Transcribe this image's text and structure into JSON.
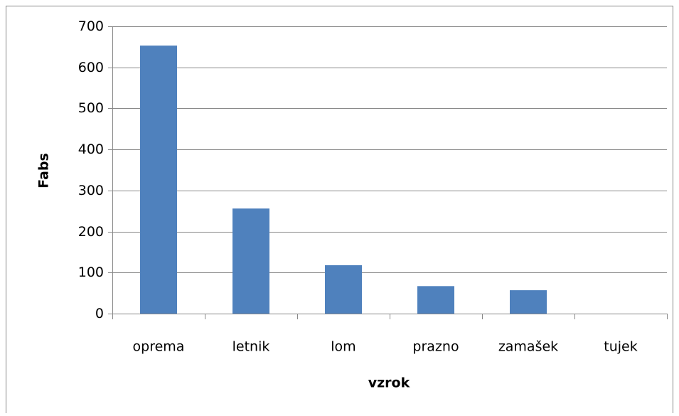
{
  "chart_data": {
    "type": "bar",
    "categories": [
      "oprema",
      "letnik",
      "lom",
      "prazno",
      "zamašek",
      "tujek"
    ],
    "values": [
      653,
      256,
      118,
      67,
      57,
      0
    ],
    "color": "#4f81bd",
    "xlabel": "vzrok",
    "ylabel": "Fabs",
    "ylim": [
      0,
      700
    ],
    "yticks": [
      0,
      100,
      200,
      300,
      400,
      500,
      600,
      700
    ],
    "grid": true
  }
}
